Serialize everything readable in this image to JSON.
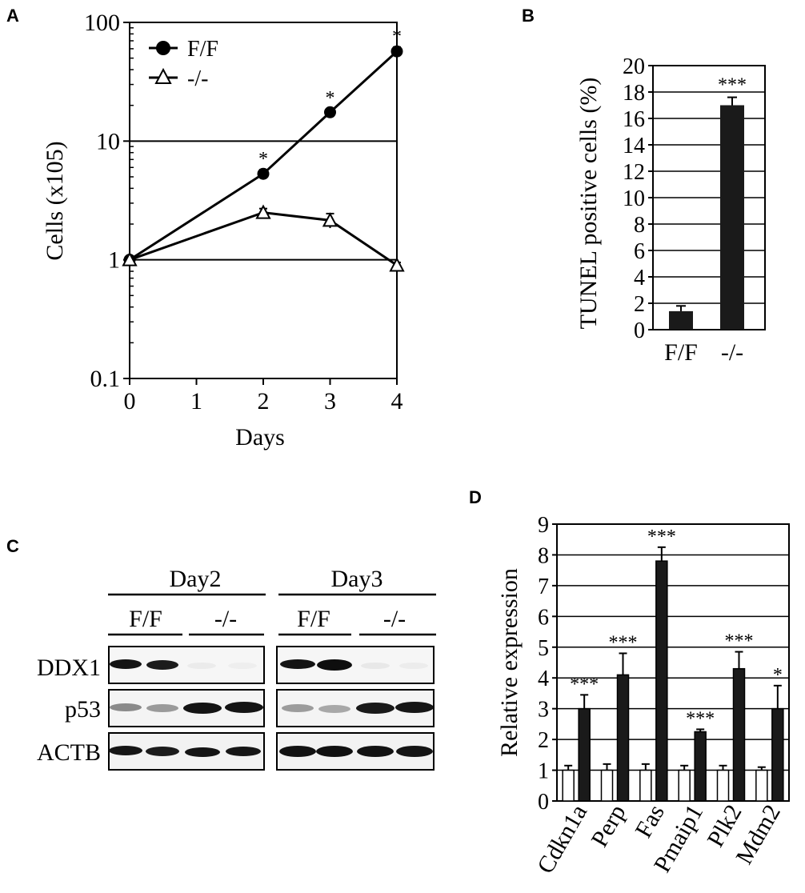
{
  "panels": {
    "a": "A",
    "b": "B",
    "c": "C",
    "d": "D"
  },
  "chart_data": [
    {
      "panel": "A",
      "type": "line",
      "xlabel": "Days",
      "ylabel": "Cells (x105)",
      "yscale": "log",
      "ylim": [
        0.1,
        100
      ],
      "xlim": [
        0,
        4
      ],
      "x_ticks": [
        "0",
        "1",
        "2",
        "3",
        "4"
      ],
      "y_ticks": [
        "0.1",
        "1",
        "10",
        "100"
      ],
      "grid": "horizontal major lines at 1 and 10",
      "legend_position": "top-left",
      "series": [
        {
          "name": "F/F",
          "marker": "filled-circle",
          "x": [
            0,
            2,
            3,
            4
          ],
          "y": [
            1,
            5.3,
            17.5,
            57
          ],
          "err": [
            0.05,
            0.45,
            1.2,
            5
          ],
          "annotations": [
            {
              "x": 2,
              "text": "*"
            },
            {
              "x": 3,
              "text": "*"
            },
            {
              "x": 4,
              "text": "*"
            }
          ]
        },
        {
          "name": "-/-",
          "marker": "open-triangle",
          "x": [
            0,
            2,
            3,
            4
          ],
          "y": [
            1,
            2.5,
            2.15,
            0.9
          ],
          "err": [
            0.05,
            0.2,
            0.3,
            0.05
          ]
        }
      ]
    },
    {
      "panel": "B",
      "type": "bar",
      "ylabel": "TUNEL positive cells (%)",
      "ylim": [
        0,
        20
      ],
      "y_ticks": [
        "0",
        "2",
        "4",
        "6",
        "8",
        "10",
        "12",
        "14",
        "16",
        "18",
        "20"
      ],
      "categories": [
        "F/F",
        "-/-"
      ],
      "values": [
        1.4,
        17.0
      ],
      "errors": [
        0.4,
        0.6
      ],
      "annotations": [
        "",
        "***"
      ],
      "grid": "horizontal lines every 2"
    },
    {
      "panel": "D",
      "type": "bar",
      "ylabel": "Relative expression",
      "ylim": [
        0,
        9
      ],
      "y_ticks": [
        "0",
        "1",
        "2",
        "3",
        "4",
        "5",
        "6",
        "7",
        "8",
        "9"
      ],
      "categories": [
        "Cdkn1a",
        "Perp",
        "Fas",
        "Pmaip1",
        "Plk2",
        "Mdm2"
      ],
      "series": [
        {
          "style": "open",
          "values": [
            1,
            1,
            1,
            1,
            1,
            1
          ],
          "errors": [
            0.15,
            0.2,
            0.2,
            0.15,
            0.15,
            0.1
          ]
        },
        {
          "style": "filled",
          "values": [
            3.0,
            4.1,
            7.8,
            2.25,
            4.3,
            3.0
          ],
          "errors": [
            0.45,
            0.7,
            0.45,
            0.08,
            0.55,
            0.75
          ]
        }
      ],
      "annotations": [
        "***",
        "***",
        "***",
        "***",
        "***",
        "*"
      ],
      "grid": "horizontal lines every 1"
    }
  ],
  "blot": {
    "panel": "C",
    "groups": [
      "Day2",
      "Day3"
    ],
    "genotypes": [
      "F/F",
      "-/-",
      "F/F",
      "-/-"
    ],
    "rows": [
      "DDX1",
      "p53",
      "ACTB"
    ]
  }
}
